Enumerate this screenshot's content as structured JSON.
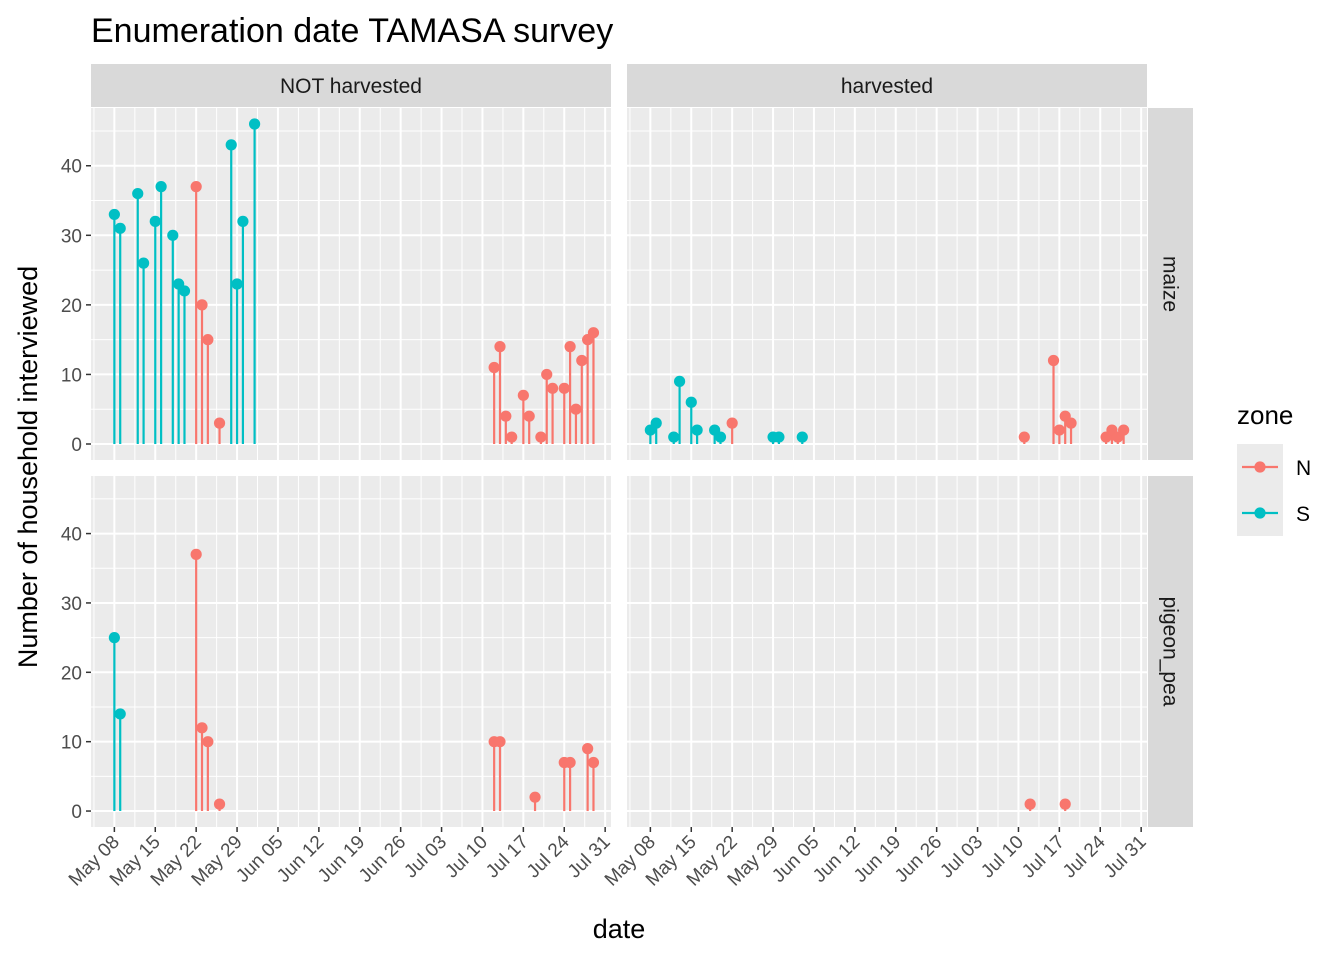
{
  "chart_data": {
    "type": "lollipop",
    "title": "Enumeration date TAMASA survey",
    "xlabel": "date",
    "ylabel": "Number of household interviewed",
    "facet_cols": [
      "NOT harvested",
      "harvested"
    ],
    "facet_rows": [
      "maize",
      "pigeon_pea"
    ],
    "x_ticks": [
      "May 08",
      "May 15",
      "May 22",
      "May 29",
      "Jun 05",
      "Jun 12",
      "Jun 19",
      "Jun 26",
      "Jul 03",
      "Jul 10",
      "Jul 17",
      "Jul 24",
      "Jul 31"
    ],
    "x_range": [
      "2021-05-04",
      "2021-08-01"
    ],
    "y_ticks": [
      0,
      10,
      20,
      30,
      40
    ],
    "ylim": [
      -2.3,
      48.3
    ],
    "grid": true,
    "legend": {
      "title": "zone",
      "position": "right",
      "entries": [
        {
          "label": "N",
          "color": "#F8766D"
        },
        {
          "label": "S",
          "color": "#00BFC4"
        }
      ]
    },
    "series": [
      {
        "col": "NOT harvested",
        "row": "maize",
        "zone": "S",
        "points": [
          [
            "2021-05-08",
            33
          ],
          [
            "2021-05-09",
            31
          ],
          [
            "2021-05-12",
            36
          ],
          [
            "2021-05-13",
            26
          ],
          [
            "2021-05-15",
            32
          ],
          [
            "2021-05-16",
            37
          ],
          [
            "2021-05-18",
            30
          ],
          [
            "2021-05-19",
            23
          ],
          [
            "2021-05-20",
            22
          ],
          [
            "2021-05-28",
            43
          ],
          [
            "2021-05-29",
            23
          ],
          [
            "2021-05-30",
            32
          ],
          [
            "2021-06-01",
            46
          ]
        ]
      },
      {
        "col": "NOT harvested",
        "row": "maize",
        "zone": "N",
        "points": [
          [
            "2021-05-22",
            37
          ],
          [
            "2021-05-23",
            20
          ],
          [
            "2021-05-24",
            15
          ],
          [
            "2021-05-26",
            3
          ],
          [
            "2021-07-12",
            11
          ],
          [
            "2021-07-13",
            14
          ],
          [
            "2021-07-14",
            4
          ],
          [
            "2021-07-15",
            1
          ],
          [
            "2021-07-17",
            7
          ],
          [
            "2021-07-18",
            4
          ],
          [
            "2021-07-20",
            1
          ],
          [
            "2021-07-21",
            10
          ],
          [
            "2021-07-22",
            8
          ],
          [
            "2021-07-24",
            8
          ],
          [
            "2021-07-25",
            14
          ],
          [
            "2021-07-26",
            5
          ],
          [
            "2021-07-27",
            12
          ],
          [
            "2021-07-28",
            15
          ],
          [
            "2021-07-29",
            16
          ]
        ]
      },
      {
        "col": "harvested",
        "row": "maize",
        "zone": "S",
        "points": [
          [
            "2021-05-08",
            2
          ],
          [
            "2021-05-09",
            3
          ],
          [
            "2021-05-12",
            1
          ],
          [
            "2021-05-13",
            9
          ],
          [
            "2021-05-15",
            6
          ],
          [
            "2021-05-16",
            2
          ],
          [
            "2021-05-19",
            2
          ],
          [
            "2021-05-20",
            1
          ],
          [
            "2021-05-29",
            1
          ],
          [
            "2021-05-30",
            1
          ],
          [
            "2021-06-03",
            1
          ]
        ]
      },
      {
        "col": "harvested",
        "row": "maize",
        "zone": "N",
        "points": [
          [
            "2021-05-22",
            3
          ],
          [
            "2021-07-11",
            1
          ],
          [
            "2021-07-16",
            12
          ],
          [
            "2021-07-17",
            2
          ],
          [
            "2021-07-18",
            4
          ],
          [
            "2021-07-19",
            3
          ],
          [
            "2021-07-25",
            1
          ],
          [
            "2021-07-26",
            2
          ],
          [
            "2021-07-27",
            1
          ],
          [
            "2021-07-28",
            2
          ]
        ]
      },
      {
        "col": "NOT harvested",
        "row": "pigeon_pea",
        "zone": "S",
        "points": [
          [
            "2021-05-08",
            25
          ],
          [
            "2021-05-09",
            14
          ]
        ]
      },
      {
        "col": "NOT harvested",
        "row": "pigeon_pea",
        "zone": "N",
        "points": [
          [
            "2021-05-22",
            37
          ],
          [
            "2021-05-23",
            12
          ],
          [
            "2021-05-24",
            10
          ],
          [
            "2021-05-26",
            1
          ],
          [
            "2021-07-12",
            10
          ],
          [
            "2021-07-13",
            10
          ],
          [
            "2021-07-19",
            2
          ],
          [
            "2021-07-24",
            7
          ],
          [
            "2021-07-25",
            7
          ],
          [
            "2021-07-28",
            9
          ],
          [
            "2021-07-29",
            7
          ]
        ]
      },
      {
        "col": "harvested",
        "row": "pigeon_pea",
        "zone": "N",
        "points": [
          [
            "2021-07-12",
            1
          ],
          [
            "2021-07-18",
            1
          ]
        ]
      }
    ]
  }
}
